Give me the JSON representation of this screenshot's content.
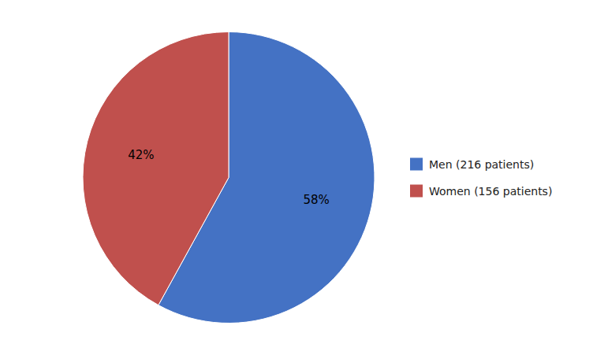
{
  "chart_data": {
    "type": "pie",
    "categories": [
      "Men (216 patients)",
      "Women (156 patients)"
    ],
    "values": [
      58,
      42
    ],
    "value_labels": [
      "58%",
      "42%"
    ],
    "colors": [
      "#4472C4",
      "#C0504D"
    ],
    "data_labels": true,
    "legend": "right"
  }
}
